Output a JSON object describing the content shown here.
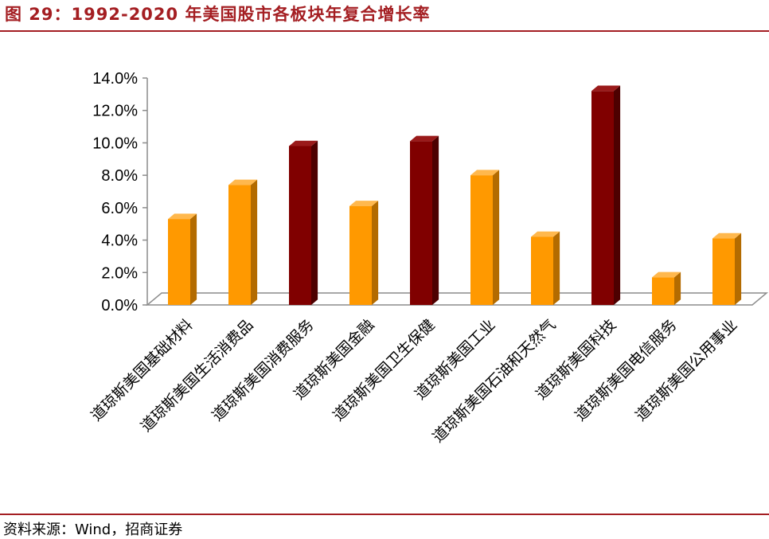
{
  "header": {
    "title": "图 29：1992-2020 年美国股市各板块年复合增长率"
  },
  "footer": {
    "source": "资料来源：Wind，招商证券"
  },
  "colors": {
    "accent": "#A41E22",
    "bar_orange": "#FF9900",
    "bar_darkred": "#800000"
  },
  "chart_data": {
    "type": "bar",
    "categories": [
      "道琼斯美国基础材料",
      "道琼斯美国生活消费品",
      "道琼斯美国消费服务",
      "道琼斯美国金融",
      "道琼斯美国卫生保健",
      "道琼斯美国工业",
      "道琼斯美国石油和天然气",
      "道琼斯美国科技",
      "道琼斯美国电信服务",
      "道琼斯美国公用事业"
    ],
    "values": [
      5.3,
      7.4,
      9.8,
      6.1,
      10.1,
      8.0,
      4.2,
      13.2,
      1.7,
      4.1
    ],
    "highlight": [
      false,
      false,
      true,
      false,
      true,
      false,
      false,
      true,
      false,
      false
    ],
    "ylim": [
      0,
      14
    ],
    "yticks": [
      "0.0%",
      "2.0%",
      "4.0%",
      "6.0%",
      "8.0%",
      "10.0%",
      "12.0%",
      "14.0%"
    ],
    "y_format": "percent",
    "grid": false,
    "legend": "none",
    "style": "3d"
  }
}
